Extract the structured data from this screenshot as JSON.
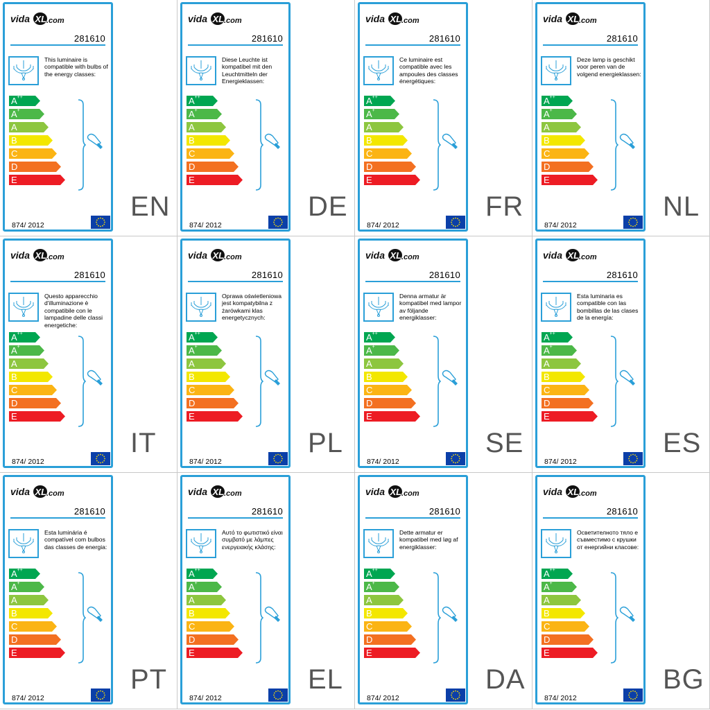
{
  "logo": {
    "brand": "vidaXL.com"
  },
  "product_code": "281610",
  "regulation": "874/ 2012",
  "energy_classes": [
    {
      "label": "A",
      "sup": "++",
      "color": "#00a651"
    },
    {
      "label": "A",
      "sup": "+",
      "color": "#4cb848"
    },
    {
      "label": "A",
      "sup": "",
      "color": "#8dc63f"
    },
    {
      "label": "B",
      "sup": "",
      "color": "#f3e700"
    },
    {
      "label": "C",
      "sup": "",
      "color": "#fbb414"
    },
    {
      "label": "D",
      "sup": "",
      "color": "#f37021"
    },
    {
      "label": "E",
      "sup": "",
      "color": "#ed1c24"
    }
  ],
  "colors": {
    "accent": "#2a9fd8",
    "eu_blue": "#0b3fa8",
    "eu_star": "#ffdd00"
  },
  "icons": {
    "lamp": "chandelier-icon",
    "bulb": "light-bulb-icon",
    "flag": "eu-flag-icon"
  },
  "panels": [
    {
      "lang": "EN",
      "text": "This luminaire is compatible with bulbs of the energy classes:"
    },
    {
      "lang": "DE",
      "text": "Diese Leuchte ist kompatibel mit den Leuchtmitteln der Energieklassen:"
    },
    {
      "lang": "FR",
      "text": "Ce luminaire est compatible avec les ampoules des classes énergétiques:"
    },
    {
      "lang": "NL",
      "text": "Deze lamp is geschikt voor peren van de volgend energieklassen:"
    },
    {
      "lang": "IT",
      "text": "Questo apparecchio d'illuminazione è compatibile con le lampadine delle classi energetiche:"
    },
    {
      "lang": "PL",
      "text": "Oprawa oświetleniowa jest kompatybilna z żarówkami klas energetycznych:"
    },
    {
      "lang": "SE",
      "text": "Denna armatur är kompatibel med lampor av följande energiklasser:"
    },
    {
      "lang": "ES",
      "text": "Esta luminaria es compatible con las bombillas de las clases de la energía:"
    },
    {
      "lang": "PT",
      "text": "Esta luminária é compatível com bulbos das classes de energia:"
    },
    {
      "lang": "EL",
      "text": "Αυτό το φωτιστικό είναι συμβατό με λάμπες ενεργειακής κλάσης:"
    },
    {
      "lang": "DA",
      "text": "Dette armatur er kompatibel med løg af energiklasser:"
    },
    {
      "lang": "BG",
      "text": "Осветителното тяло е съвместимо с крушки от енергийни класове:"
    }
  ]
}
